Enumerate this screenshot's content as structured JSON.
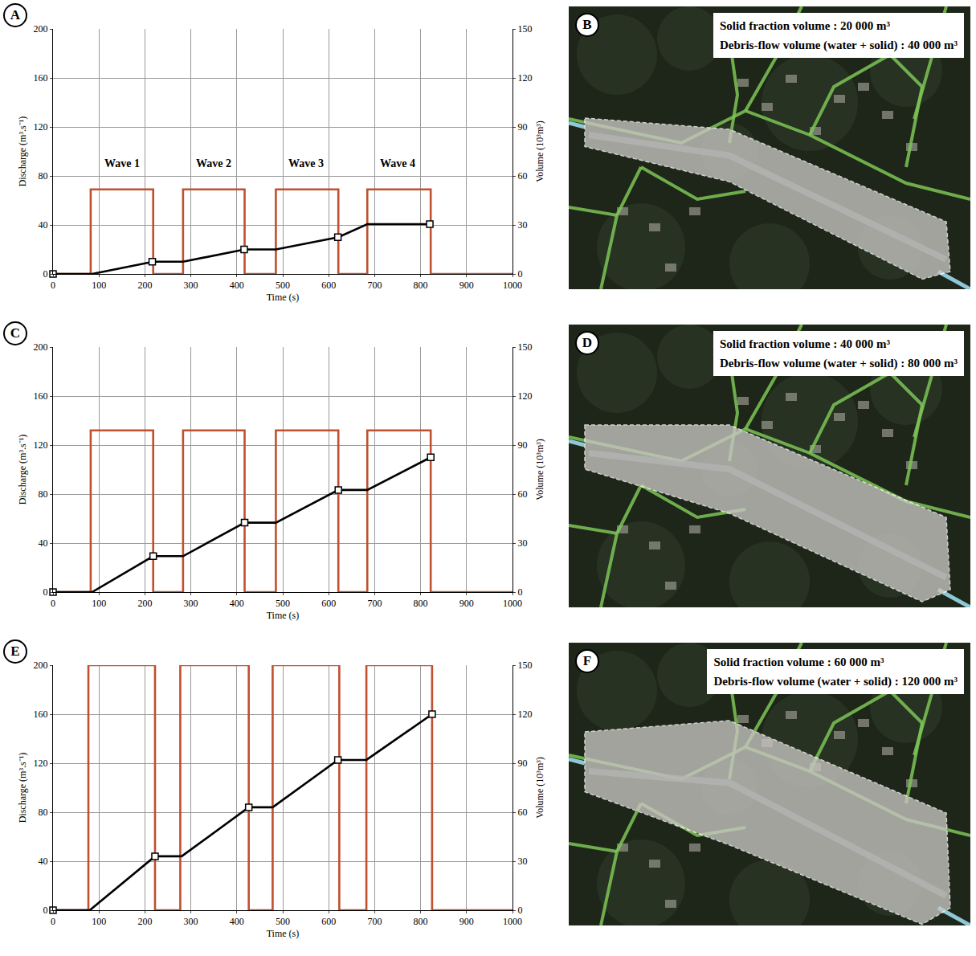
{
  "chart_data": [
    {
      "letter": "A",
      "type": "line",
      "x_label": "Time (s)",
      "y_label": "Discharge (m³.s⁻¹)",
      "y2_label": "Volume (10³m³)",
      "xlim": [
        0,
        1000
      ],
      "xticks": [
        0,
        100,
        200,
        300,
        400,
        500,
        600,
        700,
        800,
        900,
        1000
      ],
      "ylim": [
        0,
        200
      ],
      "yticks": [
        0,
        40,
        80,
        120,
        160,
        200
      ],
      "y2lim": [
        0,
        150
      ],
      "y2ticks": [
        0,
        30,
        60,
        90,
        120,
        150
      ],
      "grid": true,
      "series": [
        {
          "type": "line",
          "color": "#c0502e",
          "line_style": "solid",
          "x": [
            0,
            82,
            82,
            218,
            218,
            283,
            283,
            417,
            417,
            485,
            485,
            621,
            621,
            684,
            684,
            822,
            822,
            1000
          ],
          "values": [
            0,
            0,
            69,
            69,
            0,
            0,
            69,
            69,
            0,
            0,
            69,
            69,
            0,
            0,
            69,
            69,
            0,
            0
          ]
        },
        {
          "type": "line",
          "color": "#000000",
          "line_style": "solid",
          "axis": "y2",
          "x": [
            0,
            85,
            218,
            283,
            417,
            485,
            621,
            684,
            822
          ],
          "values": [
            0,
            0,
            7.5,
            7.5,
            15,
            15,
            22.5,
            30.5,
            30.5
          ]
        },
        {
          "type": "scatter",
          "color": "#000000",
          "marker": "square",
          "axis": "y2",
          "x": [
            0,
            216,
            416,
            620,
            820
          ],
          "values": [
            0,
            7.5,
            15,
            22.5,
            30.5
          ]
        }
      ],
      "annotations": [
        {
          "text": "Wave 1",
          "x": 150,
          "y": 90
        },
        {
          "text": "Wave 2",
          "x": 350,
          "y": 90
        },
        {
          "text": "Wave 3",
          "x": 550,
          "y": 90
        },
        {
          "text": "Wave 4",
          "x": 750,
          "y": 90
        }
      ]
    },
    {
      "letter": "C",
      "type": "line",
      "x_label": "Time (s)",
      "y_label": "Discharge (m³.s⁻¹)",
      "y2_label": "Volume (10³m³)",
      "xlim": [
        0,
        1000
      ],
      "xticks": [
        0,
        100,
        200,
        300,
        400,
        500,
        600,
        700,
        800,
        900,
        1000
      ],
      "ylim": [
        0,
        200
      ],
      "yticks": [
        0,
        40,
        80,
        120,
        160,
        200
      ],
      "y2lim": [
        0,
        150
      ],
      "y2ticks": [
        0,
        30,
        60,
        90,
        120,
        150
      ],
      "grid": true,
      "series": [
        {
          "type": "line",
          "color": "#c0502e",
          "line_style": "solid",
          "x": [
            0,
            82,
            82,
            218,
            218,
            283,
            283,
            417,
            417,
            485,
            485,
            621,
            621,
            684,
            684,
            822,
            822,
            1000
          ],
          "values": [
            0,
            0,
            132,
            132,
            0,
            0,
            132,
            132,
            0,
            0,
            132,
            132,
            0,
            0,
            132,
            132,
            0,
            0
          ]
        },
        {
          "type": "line",
          "color": "#000000",
          "line_style": "solid",
          "axis": "y2",
          "x": [
            0,
            85,
            218,
            283,
            417,
            485,
            621,
            684,
            822
          ],
          "values": [
            0,
            0,
            22,
            22,
            42.5,
            42.5,
            62.5,
            62.5,
            82.5
          ]
        },
        {
          "type": "scatter",
          "color": "#000000",
          "marker": "square",
          "axis": "y2",
          "x": [
            0,
            218,
            417,
            621,
            822
          ],
          "values": [
            0,
            22,
            42.5,
            62.5,
            82.5
          ]
        }
      ]
    },
    {
      "letter": "E",
      "type": "line",
      "x_label": "Time (s)",
      "y_label": "Discharge (m³.s⁻¹)",
      "y2_label": "Volume (10³m³)",
      "xlim": [
        0,
        1000
      ],
      "xticks": [
        0,
        100,
        200,
        300,
        400,
        500,
        600,
        700,
        800,
        900,
        1000
      ],
      "ylim": [
        0,
        200
      ],
      "yticks": [
        0,
        40,
        80,
        120,
        160,
        200
      ],
      "y2lim": [
        0,
        150
      ],
      "y2ticks": [
        0,
        30,
        60,
        90,
        120,
        150
      ],
      "grid": true,
      "series": [
        {
          "type": "line",
          "color": "#c0502e",
          "line_style": "solid",
          "x": [
            0,
            77,
            77,
            222,
            222,
            277,
            277,
            426,
            426,
            478,
            478,
            623,
            623,
            682,
            682,
            825,
            825,
            1000
          ],
          "values": [
            0,
            0,
            200,
            200,
            0,
            0,
            200,
            200,
            0,
            0,
            200,
            200,
            0,
            0,
            200,
            200,
            0,
            0
          ]
        },
        {
          "type": "line",
          "color": "#000000",
          "line_style": "solid",
          "axis": "y2",
          "x": [
            0,
            80,
            222,
            280,
            426,
            478,
            620,
            682,
            825
          ],
          "values": [
            0,
            0,
            33,
            33,
            63,
            63,
            92,
            92,
            120
          ]
        },
        {
          "type": "scatter",
          "color": "#000000",
          "marker": "square",
          "axis": "y2",
          "x": [
            0,
            222,
            426,
            620,
            825
          ],
          "values": [
            0,
            33,
            63,
            92,
            120
          ]
        }
      ]
    }
  ],
  "maps": [
    {
      "letter": "B",
      "lines": [
        "Solid fraction volume : 20 000 m³",
        "Debris-flow volume (water + solid) : 40 000 m³"
      ]
    },
    {
      "letter": "D",
      "lines": [
        "Solid fraction volume : 40 000 m³",
        "Debris-flow volume (water + solid) : 80 000 m³"
      ]
    },
    {
      "letter": "F",
      "lines": [
        "Solid fraction volume : 60 000 m³",
        "Debris-flow volume (water + solid) : 120 000 m³"
      ]
    }
  ]
}
